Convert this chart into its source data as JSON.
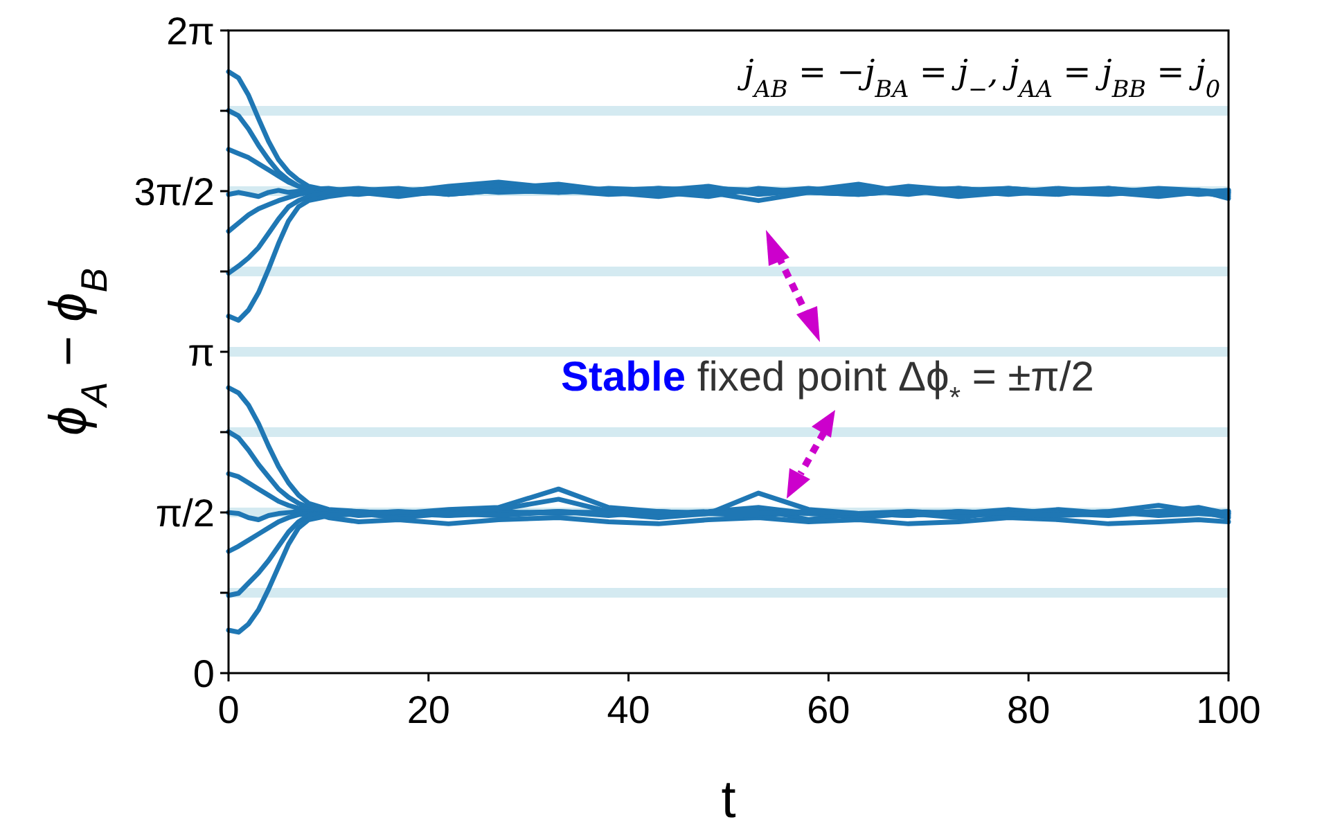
{
  "chart_data": {
    "type": "line",
    "xlabel": "t",
    "ylabel": "ϕ$_{A}$ − ϕ$_{B}$",
    "annotations": [
      "j$_{AB}$ = −j$_{BA}$ = j$_{−}$, j$_{AA}$ = j$_{BB}$ = j$_{0}$",
      "Stable",
      "fixed point Δϕ$_{*}$ = ±π/2"
    ],
    "x": [
      0,
      1,
      2,
      3,
      4,
      5,
      6,
      7,
      8,
      10,
      13,
      17,
      22,
      27,
      33,
      38,
      43,
      48,
      53,
      58,
      63,
      68,
      73,
      78,
      83,
      88,
      93,
      97,
      100
    ],
    "series": [
      {
        "color": "#1f77b4",
        "values": [
          5.88,
          5.82,
          5.65,
          5.42,
          5.2,
          5.02,
          4.9,
          4.82,
          4.76,
          4.72,
          4.74,
          4.7,
          4.76,
          4.8,
          4.74,
          4.7,
          4.72,
          4.76,
          4.68,
          4.72,
          4.78,
          4.7,
          4.72,
          4.74,
          4.7,
          4.68,
          4.72,
          4.7,
          4.66
        ]
      },
      {
        "color": "#1f77b4",
        "values": [
          5.5,
          5.45,
          5.32,
          5.16,
          5.02,
          4.9,
          4.82,
          4.76,
          4.73,
          4.7,
          4.68,
          4.72,
          4.7,
          4.74,
          4.78,
          4.72,
          4.7,
          4.66,
          4.74,
          4.7,
          4.72,
          4.68,
          4.74,
          4.7,
          4.72,
          4.74,
          4.68,
          4.7,
          4.72
        ]
      },
      {
        "color": "#1f77b4",
        "values": [
          5.12,
          5.08,
          5.04,
          4.98,
          4.92,
          4.86,
          4.8,
          4.76,
          4.73,
          4.74,
          4.7,
          4.66,
          4.72,
          4.76,
          4.7,
          4.74,
          4.72,
          4.7,
          4.62,
          4.7,
          4.74,
          4.72,
          4.66,
          4.7,
          4.74,
          4.7,
          4.72,
          4.68,
          4.7
        ]
      },
      {
        "color": "#1f77b4",
        "values": [
          4.68,
          4.7,
          4.68,
          4.66,
          4.7,
          4.72,
          4.7,
          4.71,
          4.72,
          4.7,
          4.72,
          4.74,
          4.68,
          4.72,
          4.76,
          4.7,
          4.74,
          4.72,
          4.7,
          4.74,
          4.7,
          4.76,
          4.72,
          4.7,
          4.68,
          4.74,
          4.7,
          4.72,
          4.68
        ]
      },
      {
        "color": "#1f77b4",
        "values": [
          4.32,
          4.4,
          4.48,
          4.54,
          4.58,
          4.62,
          4.65,
          4.68,
          4.7,
          4.68,
          4.7,
          4.72,
          4.74,
          4.7,
          4.72,
          4.68,
          4.7,
          4.74,
          4.72,
          4.7,
          4.68,
          4.72,
          4.74,
          4.7,
          4.72,
          4.7,
          4.74,
          4.72,
          4.7
        ]
      },
      {
        "color": "#1f77b4",
        "values": [
          3.91,
          3.98,
          4.06,
          4.16,
          4.3,
          4.44,
          4.56,
          4.62,
          4.66,
          4.7,
          4.72,
          4.68,
          4.7,
          4.72,
          4.74,
          4.7,
          4.66,
          4.72,
          4.7,
          4.72,
          4.74,
          4.7,
          4.72,
          4.68,
          4.72,
          4.7,
          4.66,
          4.7,
          4.72
        ]
      },
      {
        "color": "#1f77b4",
        "values": [
          3.49,
          3.45,
          3.55,
          3.72,
          3.95,
          4.2,
          4.42,
          4.56,
          4.62,
          4.66,
          4.7,
          4.72,
          4.68,
          4.72,
          4.7,
          4.72,
          4.74,
          4.7,
          4.72,
          4.7,
          4.68,
          4.72,
          4.7,
          4.74,
          4.7,
          4.72,
          4.7,
          4.72,
          4.64
        ]
      },
      {
        "color": "#1f77b4",
        "values": [
          2.79,
          2.74,
          2.62,
          2.44,
          2.22,
          2.02,
          1.86,
          1.74,
          1.66,
          1.6,
          1.58,
          1.56,
          1.6,
          1.62,
          1.8,
          1.62,
          1.58,
          1.56,
          1.76,
          1.6,
          1.56,
          1.54,
          1.58,
          1.56,
          1.6,
          1.56,
          1.58,
          1.62,
          1.56
        ]
      },
      {
        "color": "#1f77b4",
        "values": [
          2.36,
          2.3,
          2.18,
          2.04,
          1.92,
          1.8,
          1.72,
          1.66,
          1.62,
          1.58,
          1.56,
          1.58,
          1.54,
          1.6,
          1.7,
          1.58,
          1.56,
          1.58,
          1.62,
          1.56,
          1.54,
          1.58,
          1.56,
          1.6,
          1.56,
          1.58,
          1.64,
          1.58,
          1.52
        ]
      },
      {
        "color": "#1f77b4",
        "values": [
          1.95,
          1.92,
          1.86,
          1.8,
          1.74,
          1.68,
          1.64,
          1.61,
          1.6,
          1.58,
          1.54,
          1.56,
          1.58,
          1.56,
          1.58,
          1.54,
          1.58,
          1.56,
          1.6,
          1.5,
          1.56,
          1.58,
          1.56,
          1.54,
          1.58,
          1.56,
          1.58,
          1.6,
          1.56
        ]
      },
      {
        "color": "#1f77b4",
        "values": [
          1.57,
          1.56,
          1.52,
          1.5,
          1.54,
          1.56,
          1.57,
          1.58,
          1.58,
          1.52,
          1.48,
          1.5,
          1.46,
          1.5,
          1.52,
          1.48,
          1.46,
          1.5,
          1.52,
          1.48,
          1.5,
          1.46,
          1.48,
          1.52,
          1.5,
          1.46,
          1.48,
          1.5,
          1.48
        ]
      },
      {
        "color": "#1f77b4",
        "values": [
          1.19,
          1.24,
          1.3,
          1.36,
          1.42,
          1.48,
          1.52,
          1.55,
          1.56,
          1.54,
          1.56,
          1.52,
          1.56,
          1.58,
          1.56,
          1.58,
          1.54,
          1.56,
          1.54,
          1.58,
          1.52,
          1.56,
          1.58,
          1.52,
          1.56,
          1.58,
          1.54,
          1.56,
          1.58
        ]
      },
      {
        "color": "#1f77b4",
        "values": [
          0.76,
          0.78,
          0.88,
          0.98,
          1.1,
          1.24,
          1.38,
          1.48,
          1.54,
          1.56,
          1.58,
          1.56,
          1.54,
          1.56,
          1.58,
          1.56,
          1.52,
          1.56,
          1.58,
          1.56,
          1.54,
          1.56,
          1.52,
          1.58,
          1.56,
          1.54,
          1.58,
          1.56,
          1.54
        ]
      },
      {
        "color": "#1f77b4",
        "values": [
          0.42,
          0.4,
          0.48,
          0.62,
          0.82,
          1.04,
          1.26,
          1.42,
          1.5,
          1.54,
          1.56,
          1.58,
          1.56,
          1.54,
          1.58,
          1.56,
          1.58,
          1.56,
          1.56,
          1.58,
          1.56,
          1.54,
          1.58,
          1.56,
          1.54,
          1.56,
          1.58,
          1.56,
          1.58
        ]
      }
    ],
    "xlim": [
      0,
      100
    ],
    "ylim": [
      0,
      6.283185
    ],
    "xticks": [
      0,
      20,
      40,
      60,
      80,
      100
    ],
    "yticks": [
      0,
      {
        "value": 0.785398,
        "label": null
      },
      {
        "value": 1.570796,
        "label": "π/2"
      },
      {
        "value": 2.356194,
        "label": null
      },
      {
        "value": 3.141593,
        "label": "π"
      },
      {
        "value": 3.926991,
        "label": null
      },
      {
        "value": 4.712389,
        "label": "3π/2"
      },
      {
        "value": 5.497787,
        "label": null
      },
      {
        "value": 6.283185,
        "label": "2π"
      }
    ],
    "ref_lines": [
      {
        "axis": "y",
        "value": 0.785398,
        "color": "#d4eaf1"
      },
      {
        "axis": "y",
        "value": 1.570796,
        "color": "#d4eaf1"
      },
      {
        "axis": "y",
        "value": 2.356194,
        "color": "#d4eaf1"
      },
      {
        "axis": "y",
        "value": 3.141593,
        "color": "#d4eaf1"
      },
      {
        "axis": "y",
        "value": 3.926991,
        "color": "#d4eaf1"
      },
      {
        "axis": "y",
        "value": 4.712389,
        "color": "#d4eaf1"
      },
      {
        "axis": "y",
        "value": 5.497787,
        "color": "#d4eaf1"
      }
    ]
  }
}
